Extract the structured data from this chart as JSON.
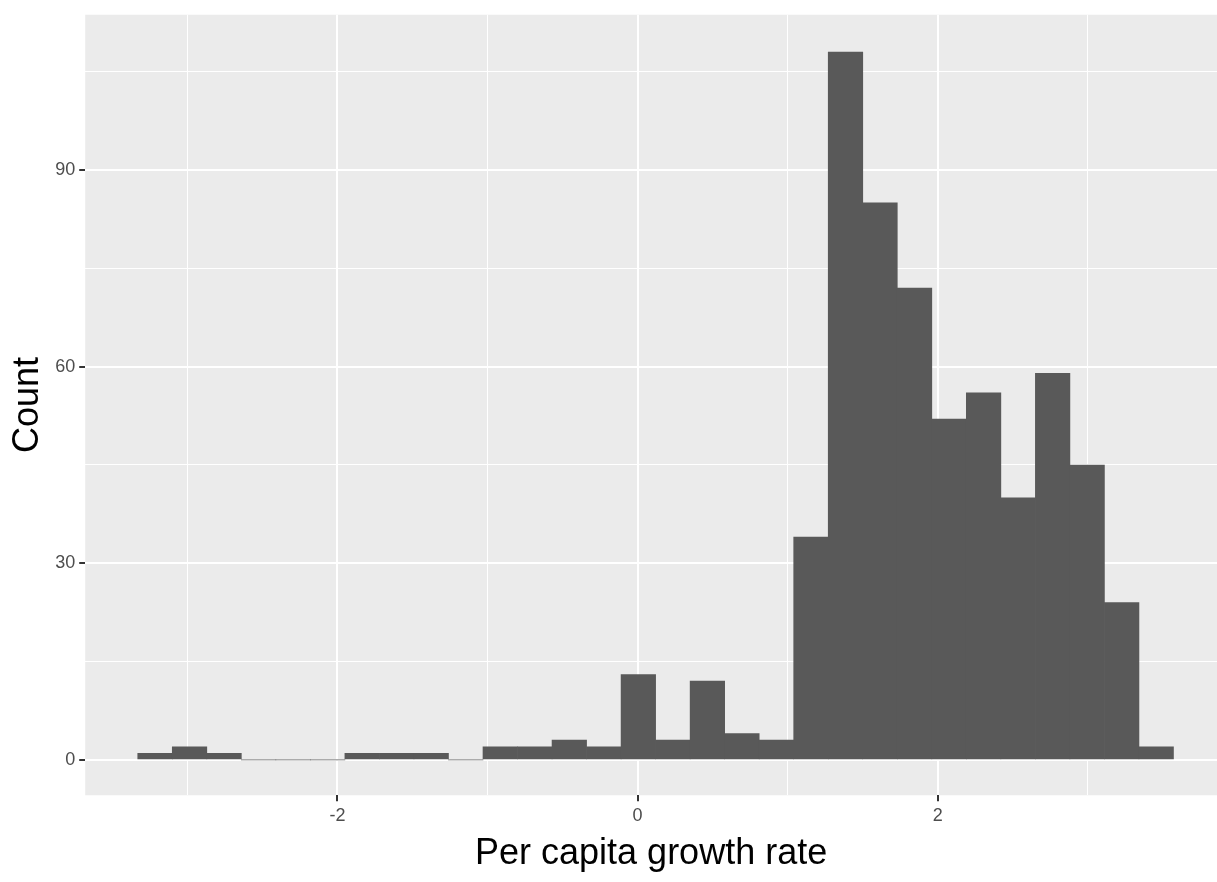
{
  "chart_data": {
    "type": "histogram",
    "xlabel": "Per capita growth rate",
    "ylabel": "Count",
    "bins": [
      -3.33,
      -3.1,
      -2.87,
      -2.64,
      -2.41,
      -2.18,
      -1.95,
      -1.72,
      -1.49,
      -1.26,
      -1.03,
      -0.8,
      -0.57,
      -0.34,
      -0.11,
      0.12,
      0.35,
      0.58,
      0.81,
      1.04,
      1.27,
      1.5,
      1.73,
      1.96,
      2.19,
      2.42,
      2.65,
      2.88,
      3.11,
      3.34,
      3.57
    ],
    "values": [
      1,
      2,
      1,
      0,
      0,
      0,
      1,
      1,
      1,
      0,
      2,
      2,
      3,
      2,
      13,
      3,
      12,
      4,
      3,
      34,
      108,
      85,
      72,
      52,
      56,
      40,
      59,
      45,
      24,
      2
    ],
    "color": "#595959",
    "xlim": [
      -3.68,
      3.86
    ],
    "xticks": [
      {
        "value": -3,
        "label": null
      },
      -2,
      {
        "value": -1,
        "label": null
      },
      0,
      {
        "value": 1,
        "label": null
      },
      2,
      {
        "value": 3,
        "label": null
      }
    ],
    "ylim": [
      -5.4,
      113.7
    ],
    "yticks": [
      0,
      {
        "value": 15,
        "label": null
      },
      30,
      {
        "value": 45,
        "label": null
      },
      60,
      {
        "value": 75,
        "label": null
      },
      90,
      {
        "value": 105,
        "label": null
      }
    ],
    "grid": true,
    "legend": false
  }
}
